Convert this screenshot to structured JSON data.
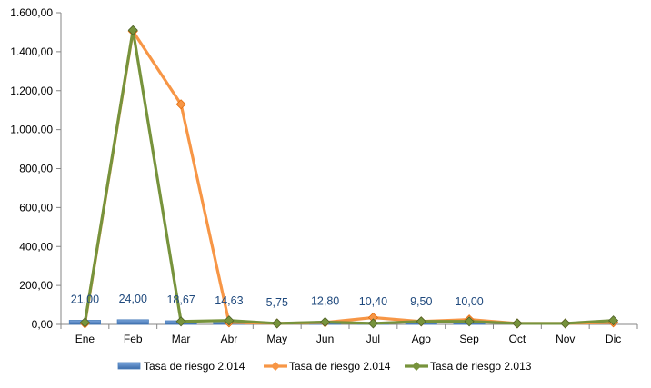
{
  "chart_data": {
    "type": "line",
    "categories": [
      "Ene",
      "Feb",
      "Mar",
      "Abr",
      "May",
      "Jun",
      "Jul",
      "Ago",
      "Sep",
      "Oct",
      "Nov",
      "Dic"
    ],
    "ylim": [
      0,
      1600
    ],
    "y_ticks": [
      0,
      200,
      400,
      600,
      800,
      1000,
      1200,
      1400,
      1600
    ],
    "y_tick_labels": [
      "0,00",
      "200,00",
      "400,00",
      "600,00",
      "800,00",
      "1.000,00",
      "1.200,00",
      "1.400,00",
      "1.600,00"
    ],
    "legend_position": "bottom",
    "grid": false,
    "series": [
      {
        "name": "Tasa de riesgo 2.014",
        "kind": "bar",
        "color": "#4a7ebb",
        "values": [
          21.0,
          24.0,
          18.67,
          14.63,
          5.75,
          12.8,
          10.4,
          9.5,
          10.0,
          null,
          null,
          null
        ],
        "data_labels": [
          "21,00",
          "24,00",
          "18,67",
          "14,63",
          "5,75",
          "12,80",
          "10,40",
          "9,50",
          "10,00",
          "",
          "",
          ""
        ]
      },
      {
        "name": "Tasa de riesgo 2.014",
        "kind": "line",
        "color": "#f79646",
        "values": [
          5,
          1505,
          1130,
          10,
          5,
          10,
          35,
          15,
          25,
          5,
          5,
          10
        ]
      },
      {
        "name": "Tasa de riesgo 2.013",
        "kind": "line",
        "color": "#77933c",
        "values": [
          10,
          1510,
          15,
          20,
          5,
          12,
          5,
          15,
          15,
          5,
          5,
          20
        ]
      }
    ]
  }
}
